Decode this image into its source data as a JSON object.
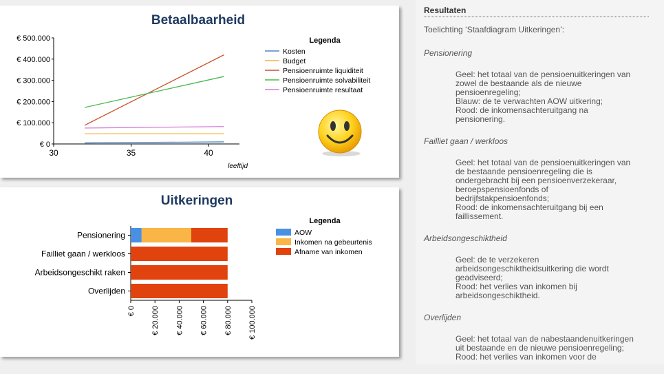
{
  "chart_data": [
    {
      "type": "line",
      "title": "Betaalbaarheid",
      "xlabel": "leeftijd",
      "ylabel": "",
      "x": [
        32,
        41
      ],
      "xlim": [
        30,
        42
      ],
      "ylim": [
        0,
        500000
      ],
      "x_ticks": [
        "30",
        "35",
        "40"
      ],
      "y_ticks": [
        "€ 0",
        "€ 100.000",
        "€ 200.000",
        "€ 300.000",
        "€ 400.000",
        "€ 500.000"
      ],
      "legend_title": "Legenda",
      "legend_position": "right",
      "series": [
        {
          "name": "Kosten",
          "color": "#4a86c4",
          "values": [
            5000,
            10000
          ]
        },
        {
          "name": "Budget",
          "color": "#f0b53c",
          "values": [
            48000,
            48000
          ]
        },
        {
          "name": "Pensioenruimte liquiditeit",
          "color": "#c8552e",
          "values": [
            88000,
            420000
          ]
        },
        {
          "name": "Pensioenruimte solvabiliteit",
          "color": "#4cb84c",
          "values": [
            172000,
            318000
          ]
        },
        {
          "name": "Pensioenruimte resultaat",
          "color": "#d57ad8",
          "values": [
            75000,
            82000
          ]
        }
      ],
      "icon": "smiley-icon"
    },
    {
      "type": "bar",
      "orientation": "horizontal",
      "stacked": true,
      "title": "Uitkeringen",
      "categories": [
        "Pensionering",
        "Failliet gaan / werkloos",
        "Arbeidsongeschikt raken",
        "Overlijden"
      ],
      "xlim": [
        0,
        100000
      ],
      "x_ticks": [
        "€ 0",
        "€ 20.000",
        "€ 40.000",
        "€ 60.000",
        "€ 80.000",
        "€ 100.000"
      ],
      "legend_title": "Legenda",
      "legend_position": "right",
      "series": [
        {
          "name": "AOW",
          "color": "#4a90e2",
          "values": [
            9000,
            0,
            0,
            0
          ]
        },
        {
          "name": "Inkomen na gebeurtenis",
          "color": "#f9b545",
          "values": [
            41000,
            0,
            0,
            0
          ]
        },
        {
          "name": "Afname van inkomen",
          "color": "#e0430e",
          "values": [
            30000,
            80000,
            80000,
            80000
          ]
        }
      ]
    }
  ],
  "results": {
    "heading": "Resultaten",
    "intro": "Toelichting ‘Staafdiagram Uitkeringen’:",
    "sections": [
      {
        "title": "Pensionering",
        "lines": [
          "Geel: het totaal van de pensioenuitkeringen van",
          "zowel de bestaande als de nieuwe",
          "pensioenregeling;",
          "Blauw: de te verwachten AOW uitkering;",
          "Rood: de inkomensachteruitgang na",
          "pensionering."
        ]
      },
      {
        "title": "Failliet gaan / werkloos",
        "lines": [
          "Geel: het totaal van de pensioenuitkeringen van",
          "de bestaande pensioenregeling die is",
          "ondergebracht bij een pensioenverzekeraar,",
          "beroepspensioenfonds of",
          "bedrijfstakpensioenfonds;",
          "Rood: de inkomensachteruitgang bij een",
          "faillissement."
        ]
      },
      {
        "title": "Arbeidsongeschiktheid",
        "lines": [
          "Geel: de te verzekeren",
          "arbeidsongeschiktheidsuitkering die wordt",
          "geadviseerd;",
          "Rood: het verlies van inkomen bij",
          "arbeidsongeschiktheid."
        ]
      },
      {
        "title": "Overlijden",
        "lines": [
          "Geel: het totaal van de nabestaandenuitkeringen",
          "uit bestaande en de nieuwe pensioenregeling;",
          "Rood: het verlies van inkomen voor de"
        ]
      }
    ]
  }
}
